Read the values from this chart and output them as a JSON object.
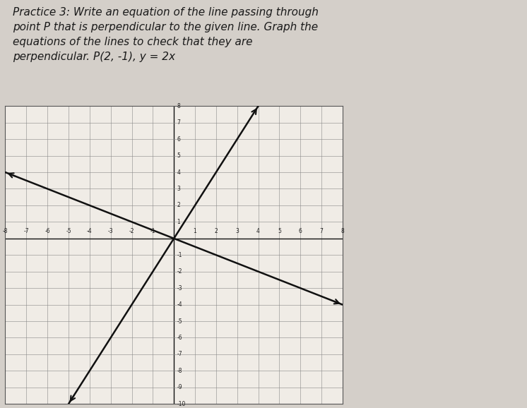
{
  "title_text": "Practice 3: Write an equation of the line passing through\npoint P that is perpendicular to the given line. Graph the\nequations of the lines to check that they are\nperpendicular. P(2, -1), y = 2x",
  "title_fontsize": 11,
  "background_color": "#d4cfc9",
  "paper_color": "#f0ece6",
  "grid_color": "#888888",
  "grid_minor_color": "#bbbbbb",
  "axis_color": "#111111",
  "line1_slope": 2,
  "line1_intercept": 0,
  "line1_color": "#111111",
  "line2_slope": -0.5,
  "line2_intercept": 0,
  "line2_color": "#111111",
  "xmin": -8,
  "xmax": 8,
  "ymin": -10,
  "ymax": 8,
  "tick_fontsize": 5.5,
  "line_width": 1.8
}
